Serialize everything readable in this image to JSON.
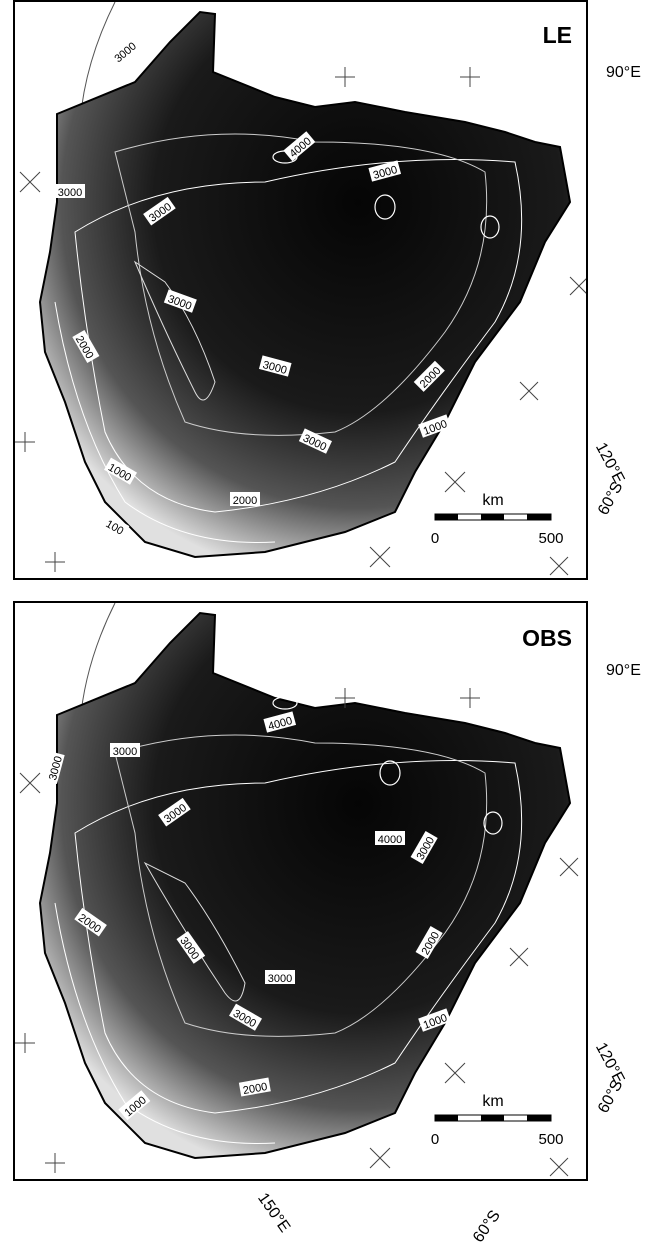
{
  "panels": [
    {
      "title": "LE",
      "contour_labels": [
        "3000",
        "3000",
        "4000",
        "3000",
        "3000",
        "3000",
        "3000",
        "2000",
        "2000",
        "3000",
        "1000",
        "1000",
        "2000",
        "100"
      ],
      "scale": {
        "unit": "km",
        "min": "0",
        "max": "500"
      }
    },
    {
      "title": "OBS",
      "contour_labels": [
        "3000",
        "4000",
        "3000",
        "3000",
        "4000",
        "3000",
        "2000",
        "3000",
        "3000",
        "2000",
        "3000",
        "1000",
        "2000",
        "1000"
      ],
      "scale": {
        "unit": "km",
        "min": "0",
        "max": "500"
      }
    }
  ],
  "grid_labels": {
    "lon_90": "90°E",
    "lon_120": "120°E",
    "lat_60": "60°S",
    "lon_150": "150°E"
  },
  "colors": {
    "ice_dark": "#0a0a0a",
    "coast_light": "#e8e8e8",
    "contour_white": "#ffffff"
  }
}
